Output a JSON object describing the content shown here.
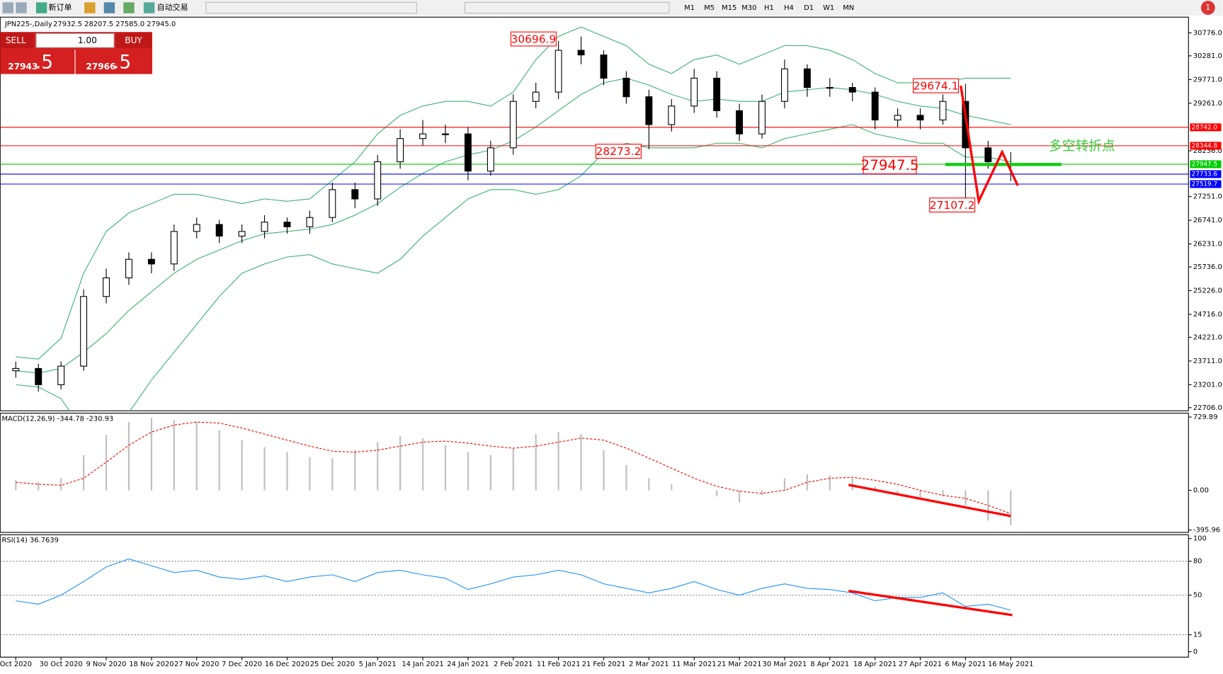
{
  "toolbar": {
    "buttons": [
      "新订单",
      "自动交易"
    ],
    "timeframes": [
      "M1",
      "M5",
      "M15",
      "M30",
      "H1",
      "H4",
      "D1",
      "W1",
      "MN"
    ],
    "badge": "1"
  },
  "trade_panel": {
    "sell": "SELL",
    "buy": "BUY",
    "lot": "1.00",
    "sell_main": "27943",
    "sell_tail": ".5",
    "buy_main": "27966",
    "buy_tail": ".5"
  },
  "header": {
    "symbol": "JPN225-,Daily",
    "ohlc": "27932.5 28207.5 27585.0 27945.0"
  },
  "annotations": {
    "high": "30696.9",
    "low1": "28273.2",
    "high2": "29674.1",
    "low2": "27107.2",
    "level": "27947.5",
    "note": "多空转折点"
  },
  "chart_data": [
    {
      "type": "candlestick",
      "categories": [
        "Oct 2020",
        null,
        "30 Oct 2020",
        null,
        "9 Nov 2020",
        null,
        "18 Nov 2020",
        null,
        "27 Nov 2020",
        null,
        "7 Dec 2020",
        null,
        "16 Dec 2020",
        null,
        "25 Dec 2020",
        null,
        "5 Jan 2021",
        null,
        "14 Jan 2021",
        null,
        "24 Jan 2021",
        null,
        "2 Feb 2021",
        null,
        "11 Feb 2021",
        null,
        "21 Feb 2021",
        null,
        "2 Mar 2021",
        null,
        "11 Mar 2021",
        null,
        "21 Mar 2021",
        null,
        "30 Mar 2021",
        null,
        "8 Apr 2021",
        null,
        "18 Apr 2021",
        null,
        "27 Apr 2021",
        null,
        "6 May 2021",
        null,
        "16 May 2021"
      ],
      "open": [
        23500,
        23550,
        23200,
        23600,
        25100,
        25500,
        25900,
        25800,
        26500,
        26650,
        26400,
        26500,
        26700,
        26600,
        26800,
        27400,
        27200,
        28000,
        28500,
        28600,
        28600,
        27800,
        28300,
        29300,
        29500,
        30400,
        30300,
        29800,
        29400,
        28800,
        29200,
        29800,
        29100,
        28600,
        29300,
        30000,
        29600,
        29600,
        29500,
        28900,
        29000,
        28900,
        29300,
        28300,
        27932.5
      ],
      "high": [
        23700,
        23650,
        23700,
        25250,
        25700,
        26050,
        26050,
        26650,
        26800,
        26750,
        26650,
        26850,
        26800,
        26950,
        27550,
        27550,
        28150,
        28700,
        28900,
        28800,
        28750,
        28450,
        29450,
        29700,
        30600,
        30696.9,
        30400,
        29950,
        29550,
        29350,
        30000,
        29950,
        29250,
        29450,
        30200,
        30100,
        29800,
        29700,
        29600,
        29150,
        29150,
        29450,
        29674.1,
        28450,
        28207.5
      ],
      "low": [
        23350,
        23050,
        23100,
        23500,
        24950,
        25350,
        25600,
        25650,
        26350,
        26250,
        26250,
        26350,
        26450,
        26450,
        26700,
        27000,
        27050,
        27850,
        28350,
        28400,
        27600,
        27700,
        28150,
        29150,
        29350,
        30100,
        29650,
        29250,
        28273.2,
        28650,
        29050,
        28950,
        28450,
        28500,
        29150,
        29400,
        29400,
        29300,
        28700,
        28750,
        28700,
        28800,
        27107.2,
        27850,
        27585
      ],
      "close": [
        23550,
        23200,
        23600,
        25100,
        25500,
        25900,
        25800,
        26500,
        26650,
        26400,
        26500,
        26700,
        26600,
        26800,
        27400,
        27200,
        28000,
        28500,
        28600,
        28600,
        27800,
        28300,
        29300,
        29500,
        30400,
        30300,
        29800,
        29400,
        28800,
        29200,
        29800,
        29100,
        28600,
        29300,
        30000,
        29600,
        29600,
        29500,
        28900,
        29000,
        28900,
        29300,
        28300,
        28000,
        27945
      ],
      "bands": {
        "color": "#3cb371",
        "upper": [
          23800,
          23750,
          24200,
          25600,
          26500,
          26900,
          27100,
          27300,
          27300,
          27200,
          27100,
          27200,
          27150,
          27200,
          27600,
          28000,
          28600,
          29000,
          29200,
          29300,
          29300,
          29200,
          29500,
          30200,
          30700,
          30900,
          30700,
          30500,
          30100,
          29900,
          30200,
          30300,
          30100,
          30300,
          30500,
          30500,
          30400,
          30200,
          29900,
          29700,
          29700,
          29700,
          29800,
          29800,
          29800
        ],
        "middle": [
          23500,
          23450,
          23550,
          23900,
          24300,
          24800,
          25200,
          25600,
          25900,
          26100,
          26300,
          26450,
          26500,
          26550,
          26650,
          26850,
          27100,
          27450,
          27750,
          28000,
          28150,
          28250,
          28450,
          28750,
          29100,
          29450,
          29700,
          29800,
          29650,
          29450,
          29300,
          29350,
          29300,
          29300,
          29500,
          29550,
          29600,
          29550,
          29450,
          29300,
          29200,
          29150,
          29000,
          28900,
          28800
        ],
        "lower": [
          23200,
          23150,
          22900,
          22200,
          22100,
          22600,
          23300,
          23900,
          24500,
          25100,
          25600,
          25800,
          25950,
          26000,
          25800,
          25700,
          25600,
          25900,
          26400,
          26800,
          27200,
          27400,
          27400,
          27300,
          27400,
          27700,
          28200,
          28400,
          28300,
          28300,
          28300,
          28400,
          28400,
          28300,
          28500,
          28600,
          28700,
          28800,
          28600,
          28500,
          28400,
          28400,
          28100,
          28100,
          28000
        ]
      },
      "levels": [
        {
          "value": 28742.0,
          "label": "28742.0",
          "color": "#ff0000"
        },
        {
          "value": 28344.8,
          "label": "28344.8",
          "color": "#ff0000"
        },
        {
          "value": 27947.5,
          "label": "27947.5",
          "color": "#00cc00"
        },
        {
          "value": 27733.6,
          "label": "27733.6",
          "color": "#0000ff"
        },
        {
          "value": 27519.7,
          "label": "27519.7",
          "color": "#0000ff"
        }
      ],
      "ylim": [
        22638,
        31114
      ],
      "yticks": [
        {
          "value": 30776,
          "label": "30776.0"
        },
        {
          "value": 30281,
          "label": "30281.0"
        },
        {
          "value": 29771,
          "label": "29771.0"
        },
        {
          "value": 29261,
          "label": "29261.0"
        },
        {
          "value": 28236,
          "label": "28236.0"
        },
        {
          "value": 27251,
          "label": "27251.0"
        },
        {
          "value": 26741,
          "label": "26741.0"
        },
        {
          "value": 26231,
          "label": "26231.0"
        },
        {
          "value": 25736,
          "label": "25736.0"
        },
        {
          "value": 25226,
          "label": "25226.0"
        },
        {
          "value": 24716,
          "label": "24716.0"
        },
        {
          "value": 24221,
          "label": "24221.0"
        },
        {
          "value": 23711,
          "label": "23711.0"
        },
        {
          "value": 23201,
          "label": "23201.0"
        },
        {
          "value": 22706,
          "label": "22706.0"
        }
      ]
    },
    {
      "type": "macd",
      "title": "MACD(12,26,9) -344.78 -230.93",
      "color": "#c0c0c0",
      "signal_color": "#ff0000",
      "values": [
        100,
        80,
        120,
        350,
        550,
        680,
        720,
        700,
        680,
        600,
        500,
        430,
        380,
        330,
        320,
        400,
        480,
        540,
        520,
        450,
        380,
        350,
        420,
        560,
        580,
        560,
        400,
        250,
        120,
        60,
        0,
        -60,
        -120,
        -50,
        120,
        160,
        150,
        120,
        40,
        -40,
        -80,
        -60,
        -150,
        -300,
        -344.78
      ],
      "signal": [
        80,
        60,
        50,
        120,
        280,
        450,
        580,
        650,
        680,
        670,
        620,
        560,
        500,
        440,
        390,
        380,
        400,
        440,
        480,
        490,
        470,
        440,
        420,
        440,
        480,
        520,
        500,
        420,
        320,
        220,
        120,
        40,
        -10,
        -30,
        0,
        80,
        120,
        130,
        100,
        60,
        0,
        -50,
        -80,
        -150,
        -230.93
      ],
      "ylim": [
        -419.3,
        768.7
      ],
      "yticks": [
        729.89,
        {
          "value": 0,
          "label": "0.00"
        },
        -395.96
      ]
    },
    {
      "type": "line",
      "title": "RSI(14) 36.7639",
      "color": "#1e90ff",
      "values": [
        45,
        42,
        50,
        62,
        75,
        82,
        76,
        70,
        72,
        66,
        64,
        67,
        62,
        66,
        68,
        62,
        70,
        72,
        68,
        65,
        55,
        60,
        66,
        68,
        72,
        68,
        60,
        56,
        52,
        56,
        62,
        55,
        50,
        56,
        60,
        56,
        55,
        52,
        45,
        48,
        48,
        52,
        40,
        42,
        36.7639
      ],
      "ylim": [
        -4.8,
        103.4
      ],
      "yticks": [
        100,
        80,
        50,
        15,
        0
      ]
    }
  ]
}
